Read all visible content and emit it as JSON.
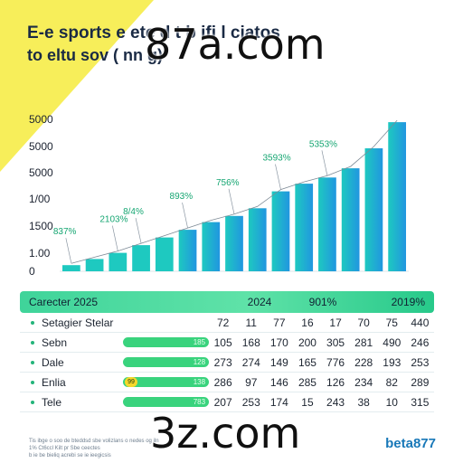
{
  "colors": {
    "accent_yellow": "#f7ee5a",
    "bar_blue": "#2196e0",
    "bar_teal": "#1ec9c0",
    "header_green": "#3fd49a",
    "label_green": "#16a672"
  },
  "title": {
    "line1": "E-e sports e  ete d t b  ifi  l    ciatos",
    "line2": "to eltu sov (  nn g)"
  },
  "watermark": {
    "top": "87a.com",
    "bottom": "3z.com"
  },
  "chart_data": {
    "type": "bar",
    "ytick_labels": [
      "0",
      "1.00",
      "1500",
      "1/00",
      "5000",
      "5000",
      "5000"
    ],
    "values": [
      4,
      8,
      12,
      17,
      22,
      27,
      32,
      36,
      41,
      52,
      57,
      61,
      67,
      80,
      97
    ],
    "annotations": [
      {
        "text": "837%",
        "bar": 0
      },
      {
        "text": "2103%",
        "bar": 2
      },
      {
        "text": "8/4%",
        "bar": 3
      },
      {
        "text": "893%",
        "bar": 5
      },
      {
        "text": "756%",
        "bar": 7
      },
      {
        "text": "3593%",
        "bar": 9
      },
      {
        "text": "5353%",
        "bar": 11
      }
    ]
  },
  "table": {
    "header": {
      "label": "Carecter 2025",
      "c1": "2024",
      "c2": "901%",
      "c3": "2019%"
    },
    "rows": [
      {
        "label": "Setagier Stelar",
        "pill": "",
        "dot": "",
        "cells": [
          "72",
          "11",
          "77",
          "16",
          "17",
          "70",
          "75",
          "440"
        ]
      },
      {
        "label": "Sebn",
        "pill": "185",
        "dot": "",
        "cells": [
          "105",
          "168",
          "170",
          "200",
          "305",
          "281",
          "490",
          "246"
        ]
      },
      {
        "label": "Dale",
        "pill": "128",
        "dot": "",
        "cells": [
          "273",
          "274",
          "149",
          "165",
          "776",
          "228",
          "193",
          "253"
        ]
      },
      {
        "label": "Enlia",
        "pill": "138",
        "dot": "99",
        "cells": [
          "286",
          "97",
          "146",
          "285",
          "126",
          "234",
          "82",
          "289"
        ]
      },
      {
        "label": "Tele",
        "pill": "783",
        "dot": "",
        "cells": [
          "207",
          "253",
          "174",
          "15",
          "243",
          "38",
          "10",
          "315"
        ]
      }
    ]
  },
  "footnote": {
    "line1": "Tis ibge o soo de bteddsd sbe volizlans o nedes  og iln",
    "line2": "1% Ct6ccl Kilt  pr Sbe ceectes",
    "line3": "  b ie  be bieliq acrebi se  ie  ieegicsis"
  },
  "brand": "beta877"
}
